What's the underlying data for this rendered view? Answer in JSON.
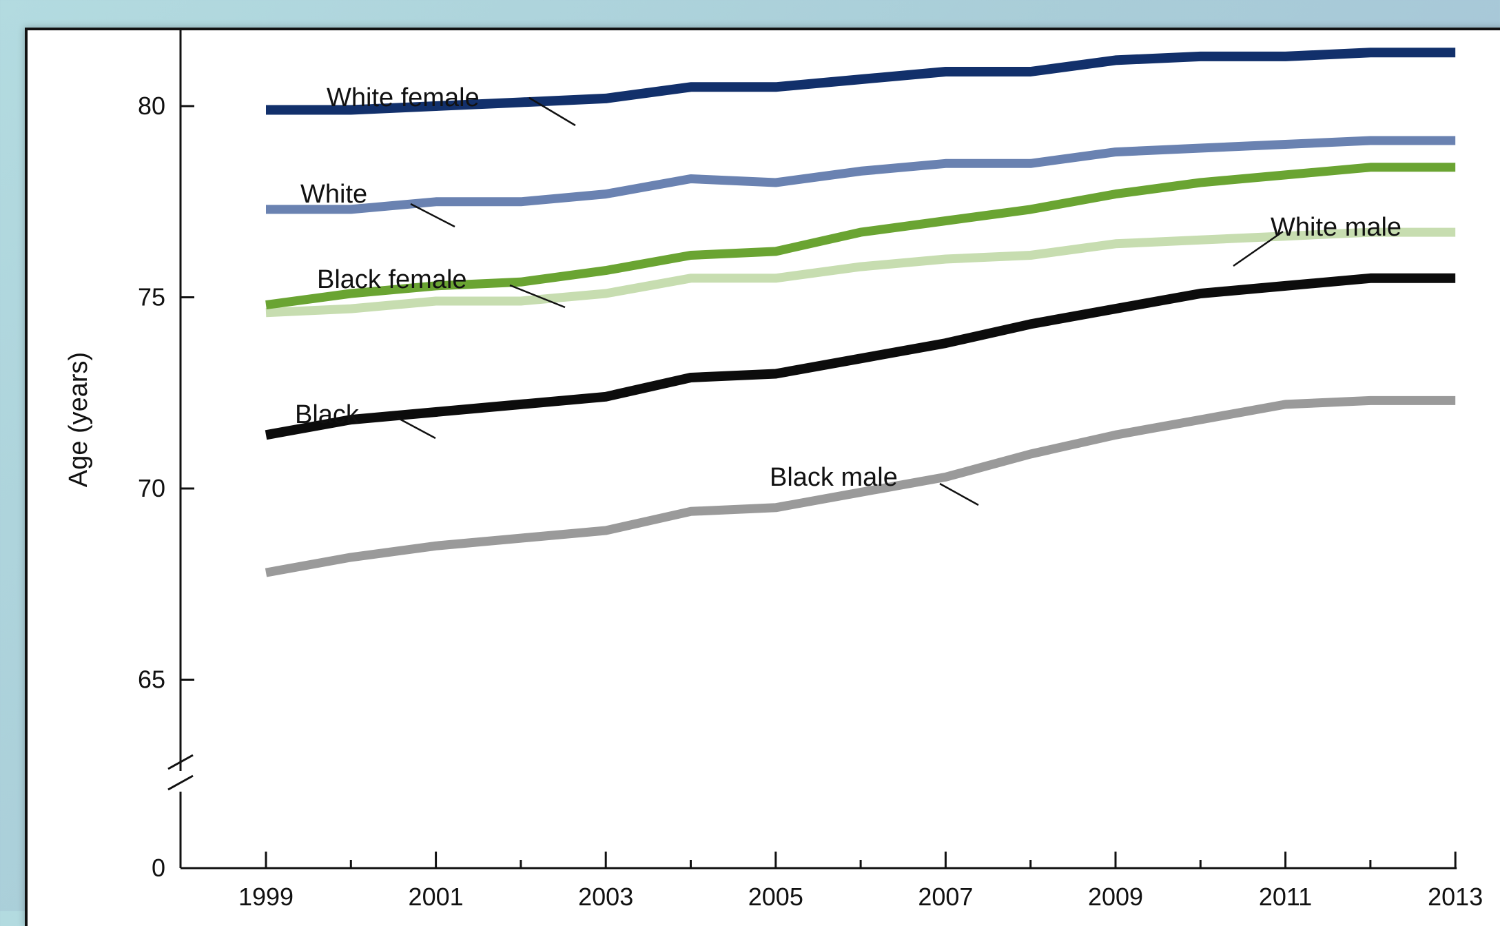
{
  "chart_data": {
    "type": "line",
    "title": "",
    "xlabel": "",
    "ylabel": "Age (years)",
    "x": [
      1999,
      2000,
      2001,
      2002,
      2003,
      2004,
      2005,
      2006,
      2007,
      2008,
      2009,
      2010,
      2011,
      2012,
      2013
    ],
    "x_tick_labels": [
      "1999",
      "2001",
      "2003",
      "2005",
      "2007",
      "2009",
      "2011",
      "2013"
    ],
    "y_tick_labels": [
      "0",
      "65",
      "70",
      "75",
      "80"
    ],
    "y_axis_break": "between 0 and 65",
    "ylim": [
      63,
      81.5
    ],
    "grid": false,
    "legend": "none (inline labels)",
    "series": [
      {
        "name": "White female",
        "color": "#12306b",
        "values": [
          79.9,
          79.9,
          80.0,
          80.1,
          80.2,
          80.5,
          80.5,
          80.7,
          80.9,
          80.9,
          81.2,
          81.3,
          81.3,
          81.4,
          81.4
        ]
      },
      {
        "name": "White",
        "color": "#6a82b1",
        "values": [
          77.3,
          77.3,
          77.5,
          77.5,
          77.7,
          78.1,
          78.0,
          78.3,
          78.5,
          78.5,
          78.8,
          78.9,
          79.0,
          79.1,
          79.1
        ]
      },
      {
        "name": "Black female",
        "color": "#6aa432",
        "values": [
          74.8,
          75.1,
          75.3,
          75.4,
          75.7,
          76.1,
          76.2,
          76.7,
          77.0,
          77.3,
          77.7,
          78.0,
          78.2,
          78.4,
          78.4
        ]
      },
      {
        "name": "White male",
        "color": "#c7ddb0",
        "values": [
          74.6,
          74.7,
          74.9,
          74.9,
          75.1,
          75.5,
          75.5,
          75.8,
          76.0,
          76.1,
          76.4,
          76.5,
          76.6,
          76.7,
          76.7
        ]
      },
      {
        "name": "Black",
        "color": "#0c0c0c",
        "values": [
          71.4,
          71.8,
          72.0,
          72.2,
          72.4,
          72.9,
          73.0,
          73.4,
          73.8,
          74.3,
          74.7,
          75.1,
          75.3,
          75.5,
          75.5
        ]
      },
      {
        "name": "Black male",
        "color": "#9a9a9a",
        "values": [
          67.8,
          68.2,
          68.5,
          68.7,
          68.9,
          69.4,
          69.5,
          69.9,
          70.3,
          70.9,
          71.4,
          71.8,
          72.2,
          72.3,
          72.3
        ]
      }
    ]
  }
}
